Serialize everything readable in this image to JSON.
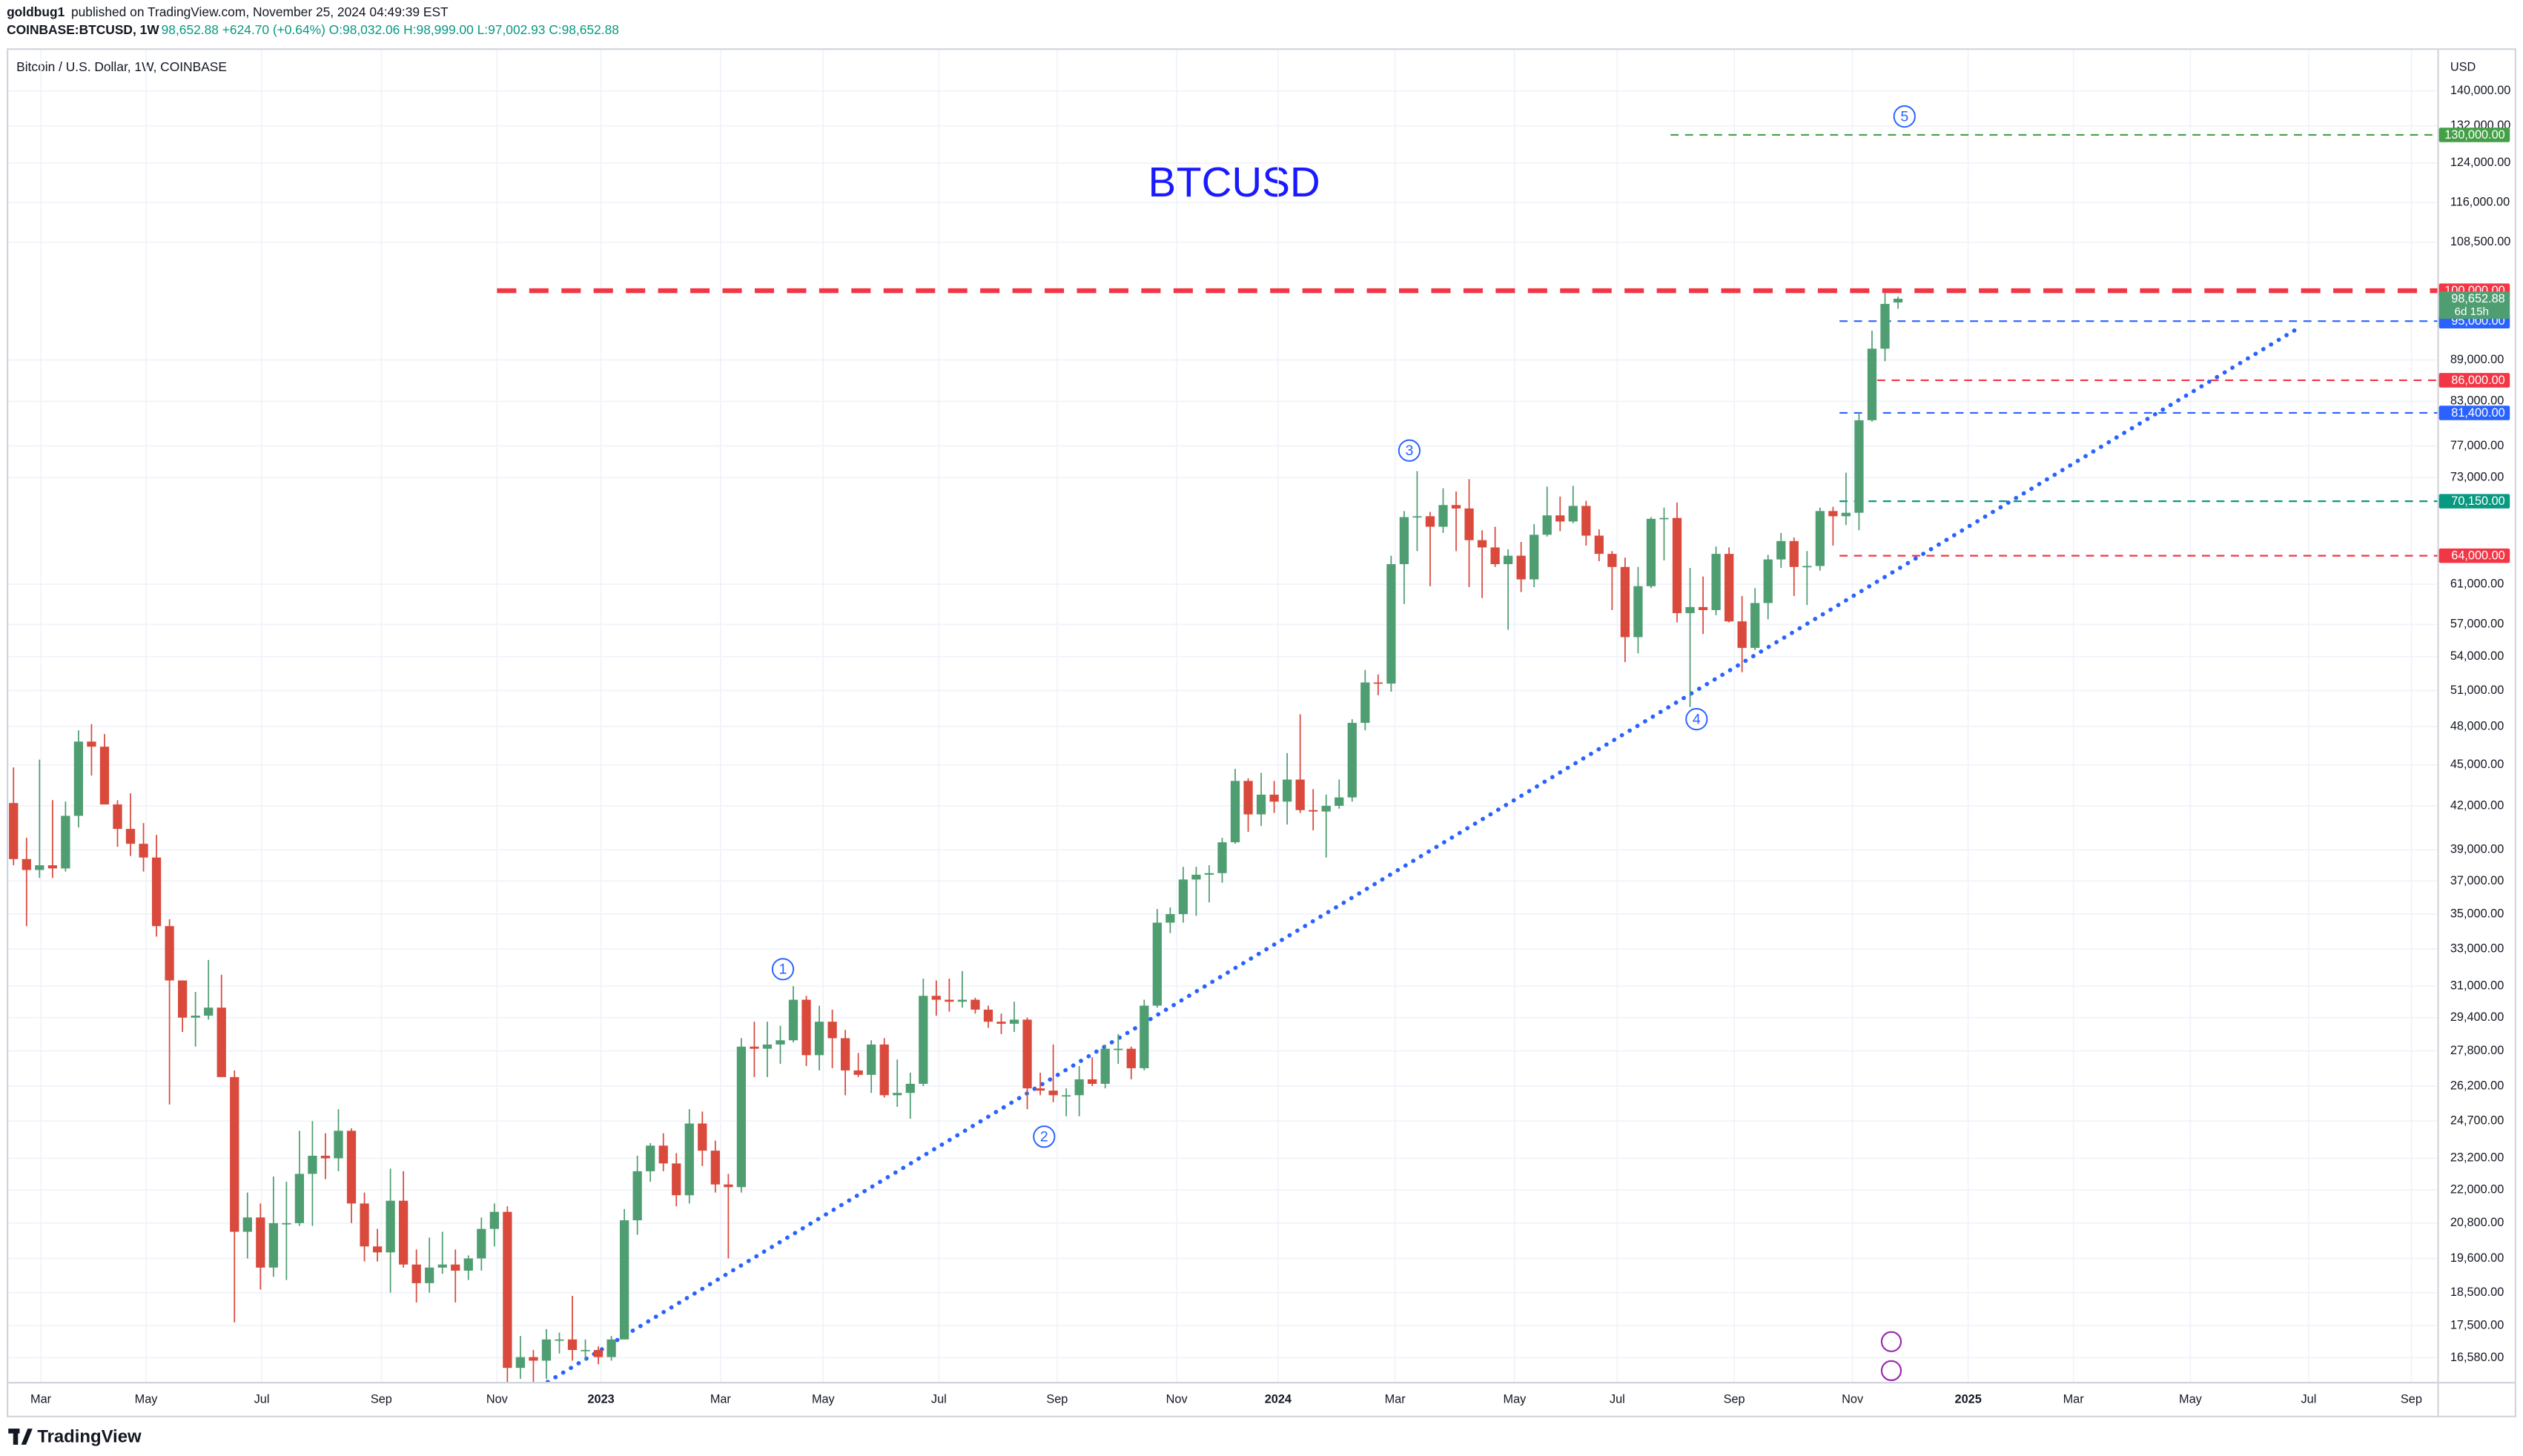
{
  "header": {
    "author": "goldbug1",
    "published": "published on TradingView.com, November 25, 2024 04:49:39 EST",
    "symbol": "COINBASE:BTCUSD, 1W",
    "quote": "98,652.88 +624.70 (+0.64%) O:98,032.06 H:98,999.00 L:97,002.93 C:98,652.88"
  },
  "footer": {
    "brand": "TradingView"
  },
  "chart_data": {
    "type": "candlestick",
    "title": "BTCUSD",
    "subtitle": "Bitcoin / U.S. Dollar, 1W, COINBASE",
    "y_axis_label": "USD",
    "log_scale": true,
    "grid": true,
    "up_color": "#4f9e72",
    "down_color": "#d9493c",
    "xlim": [
      -0.4,
      186.5
    ],
    "xticks": [
      {
        "value": 2.1,
        "label": "Mar"
      },
      {
        "value": 10.2,
        "label": "May"
      },
      {
        "value": 19.1,
        "label": "Jul"
      },
      {
        "value": 28.3,
        "label": "Sep"
      },
      {
        "value": 37.2,
        "label": "Nov"
      },
      {
        "value": 45.2,
        "label": "2023"
      },
      {
        "value": 54.4,
        "label": "Mar"
      },
      {
        "value": 62.3,
        "label": "May"
      },
      {
        "value": 71.2,
        "label": "Jul"
      },
      {
        "value": 80.3,
        "label": "Sep"
      },
      {
        "value": 89.5,
        "label": "Nov"
      },
      {
        "value": 97.3,
        "label": "2024"
      },
      {
        "value": 106.3,
        "label": "Mar"
      },
      {
        "value": 115.5,
        "label": "May"
      },
      {
        "value": 123.4,
        "label": "Jul"
      },
      {
        "value": 132.4,
        "label": "Sep"
      },
      {
        "value": 141.5,
        "label": "Nov"
      },
      {
        "value": 150.4,
        "label": "2025"
      },
      {
        "value": 158.5,
        "label": "Mar"
      },
      {
        "value": 167.5,
        "label": "May"
      },
      {
        "value": 176.6,
        "label": "Jul"
      },
      {
        "value": 184.5,
        "label": "Sep"
      }
    ],
    "ylim": [
      15920,
      150000
    ],
    "yticks": [
      {
        "value": 140000,
        "label": "140,000.00"
      },
      {
        "value": 132000,
        "label": "132,000.00"
      },
      {
        "value": 124000,
        "label": "124,000.00"
      },
      {
        "value": 116000,
        "label": "116,000.00"
      },
      {
        "value": 108500,
        "label": "108,500.00"
      },
      {
        "value": 89000,
        "label": "89,000.00"
      },
      {
        "value": 83000,
        "label": "83,000.00"
      },
      {
        "value": 77000,
        "label": "77,000.00"
      },
      {
        "value": 73000,
        "label": "73,000.00"
      },
      {
        "value": 61000,
        "label": "61,000.00"
      },
      {
        "value": 57000,
        "label": "57,000.00"
      },
      {
        "value": 54000,
        "label": "54,000.00"
      },
      {
        "value": 51000,
        "label": "51,000.00"
      },
      {
        "value": 48000,
        "label": "48,000.00"
      },
      {
        "value": 45000,
        "label": "45,000.00"
      },
      {
        "value": 42000,
        "label": "42,000.00"
      },
      {
        "value": 39000,
        "label": "39,000.00"
      },
      {
        "value": 37000,
        "label": "37,000.00"
      },
      {
        "value": 35000,
        "label": "35,000.00"
      },
      {
        "value": 33000,
        "label": "33,000.00"
      },
      {
        "value": 31000,
        "label": "31,000.00"
      },
      {
        "value": 29400,
        "label": "29,400.00"
      },
      {
        "value": 27800,
        "label": "27,800.00"
      },
      {
        "value": 26200,
        "label": "26,200.00"
      },
      {
        "value": 24700,
        "label": "24,700.00"
      },
      {
        "value": 23200,
        "label": "23,200.00"
      },
      {
        "value": 22000,
        "label": "22,000.00"
      },
      {
        "value": 20800,
        "label": "20,800.00"
      },
      {
        "value": 19600,
        "label": "19,600.00"
      },
      {
        "value": 18500,
        "label": "18,500.00"
      },
      {
        "value": 17500,
        "label": "17,500.00"
      },
      {
        "value": 16580,
        "label": "16,580.00"
      }
    ],
    "open": [
      42200,
      38400,
      37700,
      38000,
      37800,
      41300,
      46800,
      46400,
      42100,
      40400,
      39400,
      38500,
      34300,
      31300,
      29400,
      29500,
      29900,
      26600,
      20500,
      21000,
      19300,
      20800,
      20800,
      22600,
      23300,
      23200,
      24300,
      21500,
      20000,
      19800,
      21600,
      19400,
      18800,
      19300,
      19400,
      19200,
      19600,
      20600,
      21200,
      16300,
      16600,
      16500,
      17100,
      17100,
      16800,
      16800,
      16600,
      17100,
      20900,
      22700,
      23700,
      23000,
      21800,
      24600,
      23500,
      22200,
      22100,
      28000,
      27900,
      28100,
      28300,
      30300,
      27600,
      29200,
      28400,
      26900,
      26700,
      28100,
      25800,
      25900,
      26300,
      30500,
      30300,
      30200,
      30300,
      29800,
      29200,
      29100,
      29300,
      26100,
      26000,
      25800,
      25800,
      26500,
      26300,
      27900,
      27900,
      27000,
      30000,
      34500,
      35000,
      37100,
      37400,
      37500,
      39500,
      43800,
      41400,
      42800,
      42300,
      43900,
      41700,
      41600,
      42000,
      42600,
      48300,
      51700,
      51600,
      63100,
      68300,
      68400,
      67200,
      69700,
      69300,
      65700,
      64900,
      63100,
      64000,
      61500,
      66300,
      68500,
      67800,
      69600,
      66200,
      64200,
      62800,
      55800,
      60800,
      68100,
      68200,
      58100,
      58700,
      58400,
      64200,
      57300,
      54800,
      59100,
      63600,
      65600,
      62800,
      62900,
      69000,
      68400,
      68800,
      80400,
      90700,
      98032.06
    ],
    "high": [
      44800,
      39800,
      45400,
      42400,
      42300,
      47700,
      48200,
      47400,
      42400,
      42900,
      40800,
      40000,
      34700,
      31300,
      30700,
      32400,
      31600,
      26900,
      21900,
      21500,
      22500,
      22300,
      24300,
      24700,
      24200,
      25200,
      24400,
      21900,
      20600,
      22800,
      22700,
      19900,
      20300,
      20500,
      19900,
      19700,
      21000,
      21500,
      21400,
      17200,
      16800,
      17400,
      17300,
      18400,
      17100,
      16900,
      17200,
      21300,
      23300,
      23800,
      24200,
      23400,
      25200,
      25100,
      23900,
      22600,
      28400,
      29200,
      29200,
      29000,
      31000,
      30500,
      30000,
      29800,
      28800,
      27700,
      28300,
      28400,
      27400,
      26800,
      31400,
      31300,
      31400,
      31800,
      30400,
      30000,
      29600,
      30200,
      29400,
      26800,
      28100,
      26100,
      27100,
      27500,
      28100,
      28600,
      28000,
      30300,
      35300,
      35400,
      37900,
      37900,
      38000,
      39800,
      44700,
      44000,
      44400,
      43800,
      45900,
      49000,
      43200,
      42800,
      43900,
      48600,
      52800,
      52400,
      64000,
      69000,
      73800,
      68900,
      71700,
      71300,
      72800,
      66800,
      67200,
      64700,
      65500,
      67500,
      71900,
      70700,
      72000,
      70200,
      66900,
      64500,
      63800,
      62800,
      68300,
      69400,
      70000,
      62700,
      61800,
      65000,
      64900,
      59800,
      60600,
      64100,
      66500,
      66000,
      64500,
      69400,
      69500,
      73600,
      81500,
      93500,
      99600,
      98999
    ],
    "low": [
      38000,
      34300,
      37200,
      37200,
      37600,
      40500,
      44200,
      42100,
      39200,
      38600,
      37600,
      33700,
      25400,
      28700,
      28000,
      29300,
      26600,
      17600,
      19600,
      18600,
      19000,
      18900,
      20700,
      20700,
      22400,
      22700,
      20800,
      19500,
      19500,
      18500,
      19300,
      18200,
      18500,
      19100,
      18200,
      18900,
      19200,
      20000,
      15600,
      16000,
      15500,
      16000,
      16700,
      16500,
      16500,
      16400,
      16500,
      17100,
      20400,
      22300,
      22700,
      21400,
      21500,
      22900,
      21900,
      19600,
      21900,
      26600,
      26600,
      27200,
      28200,
      27100,
      26900,
      27000,
      25800,
      26600,
      25900,
      25700,
      25300,
      24800,
      26200,
      29500,
      29700,
      29900,
      29600,
      28900,
      28600,
      28700,
      25200,
      25800,
      25500,
      24900,
      24900,
      26200,
      26100,
      27200,
      26500,
      26900,
      29900,
      33900,
      34500,
      34900,
      35700,
      36900,
      39400,
      40200,
      40600,
      41500,
      40700,
      41500,
      40300,
      38500,
      41800,
      42300,
      47700,
      50600,
      50900,
      59000,
      64500,
      60800,
      66500,
      64500,
      60700,
      59600,
      62800,
      56500,
      60200,
      60700,
      66100,
      66700,
      67600,
      65100,
      63400,
      58400,
      53500,
      54300,
      60600,
      63500,
      57200,
      49600,
      56100,
      57900,
      57200,
      52600,
      54600,
      57500,
      62700,
      59800,
      58900,
      62400,
      65100,
      67400,
      66800,
      80200,
      88800,
      97002.93
    ],
    "close": [
      38400,
      37700,
      38000,
      37800,
      41300,
      46800,
      46400,
      42100,
      40400,
      39400,
      38500,
      34300,
      31300,
      29400,
      29500,
      29900,
      26600,
      20500,
      21000,
      19300,
      20800,
      20800,
      22600,
      23300,
      23200,
      24300,
      21500,
      20000,
      19800,
      21600,
      19400,
      18800,
      19300,
      19400,
      19200,
      19600,
      20600,
      21200,
      16300,
      16600,
      16500,
      17100,
      17100,
      16800,
      16800,
      16600,
      17100,
      20900,
      22700,
      23700,
      23000,
      21800,
      24600,
      23500,
      22200,
      22100,
      28000,
      27900,
      28100,
      28300,
      30300,
      27600,
      29200,
      28400,
      26900,
      26700,
      28100,
      25800,
      25900,
      26300,
      30500,
      30300,
      30200,
      30300,
      29800,
      29200,
      29100,
      29300,
      26100,
      26000,
      25800,
      25800,
      26500,
      26300,
      27900,
      27900,
      27000,
      30000,
      34500,
      35000,
      37100,
      37400,
      37500,
      39500,
      43800,
      41400,
      42800,
      42300,
      43900,
      41700,
      41600,
      42000,
      42600,
      48300,
      51700,
      51600,
      63100,
      68300,
      68400,
      67200,
      69700,
      69300,
      65700,
      64900,
      63100,
      64000,
      61500,
      66300,
      68500,
      67800,
      69600,
      66200,
      64200,
      62800,
      55800,
      60800,
      68100,
      68200,
      58100,
      58700,
      58400,
      64200,
      57300,
      54800,
      59100,
      63600,
      65600,
      62800,
      62900,
      69000,
      68400,
      68800,
      80400,
      90700,
      97800,
      98652.88
    ],
    "price_label": {
      "value": 98652.88,
      "label": "98,652.88",
      "countdown": "6d 15h",
      "color": "#4f9e72"
    },
    "levels": [
      {
        "value": 130000,
        "label": "130,000.00",
        "color": "#43a047",
        "start": 127.5
      },
      {
        "value": 100000,
        "label": "100,000.00",
        "color": "#f23645",
        "start": 37.2,
        "thick": true
      },
      {
        "value": 95000,
        "label": "95,000.00",
        "color": "#2962ff",
        "start": 140.5
      },
      {
        "value": 86000,
        "label": "86,000.00",
        "color": "#f23645",
        "start": 143.4
      },
      {
        "value": 81400,
        "label": "81,400.00",
        "color": "#2962ff",
        "start": 140.5
      },
      {
        "value": 70150,
        "label": "70,150.00",
        "color": "#089981",
        "start": 140.5
      },
      {
        "value": 64000,
        "label": "64,000.00",
        "color": "#f23645",
        "start": 140.5
      }
    ],
    "trend_line": {
      "x": [
        41.1,
        175.6
      ],
      "y": [
        15920,
        93650
      ],
      "color": "#2962ff"
    },
    "wave_labels": [
      {
        "label": "1",
        "x": 59.2,
        "y": 31900
      },
      {
        "label": "2",
        "x": 79.3,
        "y": 24060
      },
      {
        "label": "3",
        "x": 107.4,
        "y": 76400
      },
      {
        "label": "4",
        "x": 129.5,
        "y": 48600
      },
      {
        "label": "5",
        "x": 145.5,
        "y": 134100
      }
    ]
  }
}
